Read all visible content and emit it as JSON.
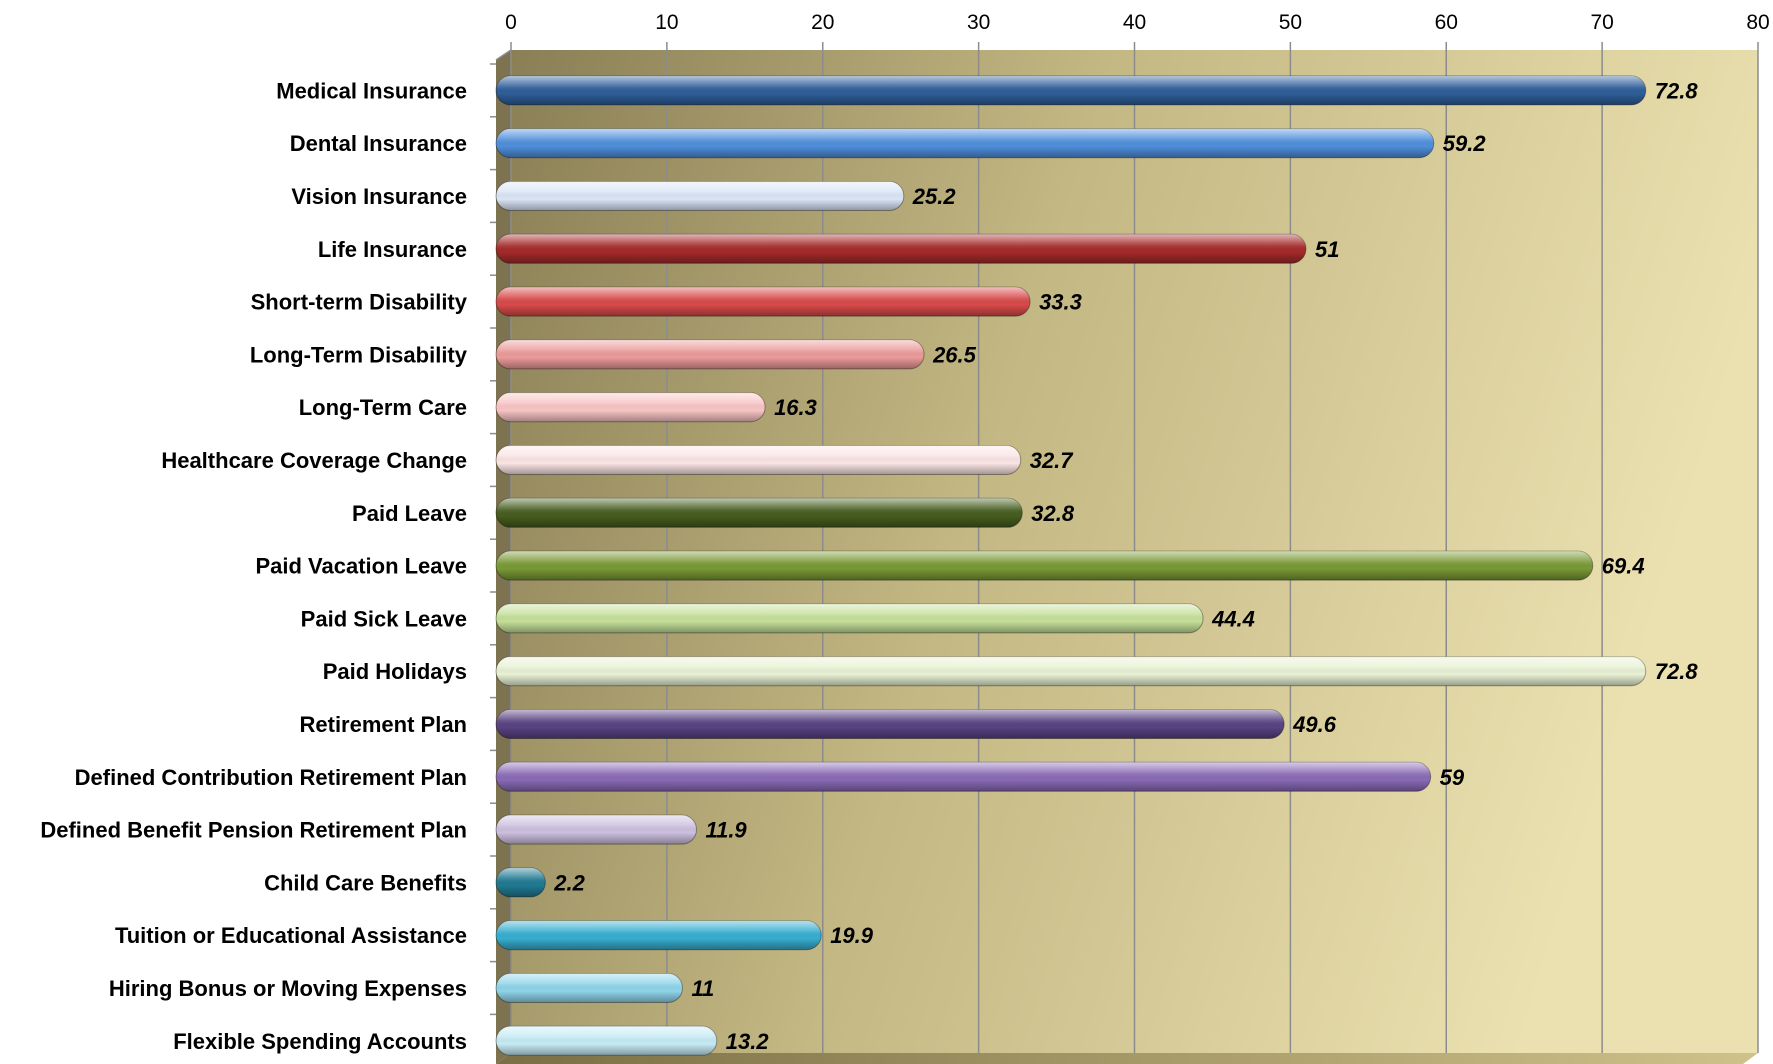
{
  "chart_data": {
    "type": "bar",
    "orientation": "horizontal",
    "title": "",
    "xlabel": "",
    "ylabel": "",
    "xlim": [
      0,
      80
    ],
    "ticks": [
      0,
      10,
      20,
      30,
      40,
      50,
      60,
      70,
      80
    ],
    "tick_labels": [
      "0",
      "10",
      "20",
      "30",
      "40",
      "50",
      "60",
      "70",
      "80"
    ],
    "axis_position": "top",
    "grid": true,
    "legend": "none",
    "categories": [
      "Medical Insurance",
      "Dental Insurance",
      "Vision Insurance",
      "Life Insurance",
      "Short-term Disability",
      "Long-Term Disability",
      "Long-Term Care",
      "Healthcare Coverage Change",
      "Paid Leave",
      "Paid Vacation Leave",
      "Paid Sick Leave",
      "Paid Holidays",
      "Retirement Plan",
      "Defined Contribution Retirement Plan",
      "Defined Benefit Pension Retirement Plan",
      "Child Care Benefits",
      "Tuition or Educational Assistance",
      "Hiring Bonus or Moving Expenses",
      "Flexible Spending Accounts"
    ],
    "values": [
      72.8,
      59.2,
      25.2,
      51,
      33.3,
      26.5,
      16.3,
      32.7,
      32.8,
      69.4,
      44.4,
      72.8,
      49.6,
      59,
      11.9,
      2.2,
      19.9,
      11,
      13.2
    ],
    "value_labels": [
      "72.8",
      "59.2",
      "25.2",
      "51",
      "33.3",
      "26.5",
      "16.3",
      "32.7",
      "32.8",
      "69.4",
      "44.4",
      "72.8",
      "49.6",
      "59",
      "11.9",
      "2.2",
      "19.9",
      "11",
      "13.2"
    ],
    "colors": [
      "#2e5e9a",
      "#4f8fdc",
      "#dbe6f7",
      "#a52a2a",
      "#d94a4a",
      "#ec9a9a",
      "#f9c5c5",
      "#fbe5e5",
      "#465d1e",
      "#799935",
      "#c5e09a",
      "#e9f2d5",
      "#594282",
      "#8a6ab6",
      "#cdc0e0",
      "#1f7a92",
      "#37aed0",
      "#8fd5ea",
      "#c6ebf5"
    ]
  }
}
